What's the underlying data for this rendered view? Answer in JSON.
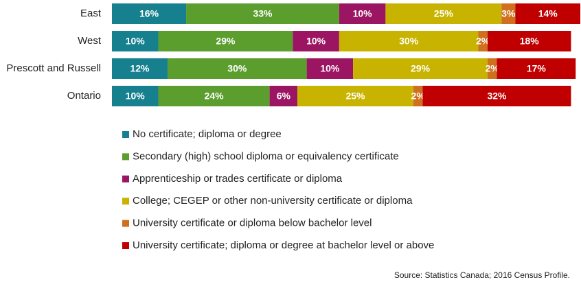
{
  "chart_data": {
    "type": "stacked-bar-horizontal",
    "categories": [
      "East",
      "West",
      "Prescott and Russell",
      "Ontario"
    ],
    "series": [
      {
        "name": "No certificate; diploma or degree",
        "color": "#17808f",
        "values": [
          16,
          10,
          12,
          10
        ],
        "value_labels": [
          "16%",
          "10%",
          "12%",
          "10%"
        ]
      },
      {
        "name": "Secondary (high) school diploma or equivalency certificate",
        "color": "#5b9e2e",
        "values": [
          33,
          29,
          30,
          24
        ],
        "value_labels": [
          "33%",
          "29%",
          "30%",
          "24%"
        ]
      },
      {
        "name": "Apprenticeship or trades certificate or diploma",
        "color": "#9c1562",
        "values": [
          10,
          10,
          10,
          6
        ],
        "value_labels": [
          "10%",
          "10%",
          "10%",
          "6%"
        ]
      },
      {
        "name": "College; CEGEP or other non-university certificate or diploma",
        "color": "#c8b400",
        "values": [
          25,
          30,
          29,
          25
        ],
        "value_labels": [
          "25%",
          "30%",
          "29%",
          "25%"
        ]
      },
      {
        "name": "University certificate or diploma below bachelor level",
        "color": "#d0701f",
        "values": [
          3,
          2,
          2,
          2
        ],
        "value_labels": [
          "3%",
          "2%",
          "2%",
          "2%"
        ]
      },
      {
        "name": "University certificate; diploma or degree at bachelor level or above",
        "color": "#c00000",
        "values": [
          14,
          18,
          17,
          32
        ],
        "value_labels": [
          "14%",
          "18%",
          "17%",
          "32%"
        ]
      }
    ],
    "source": "Source: Statistics Canada; 2016 Census Profile."
  }
}
